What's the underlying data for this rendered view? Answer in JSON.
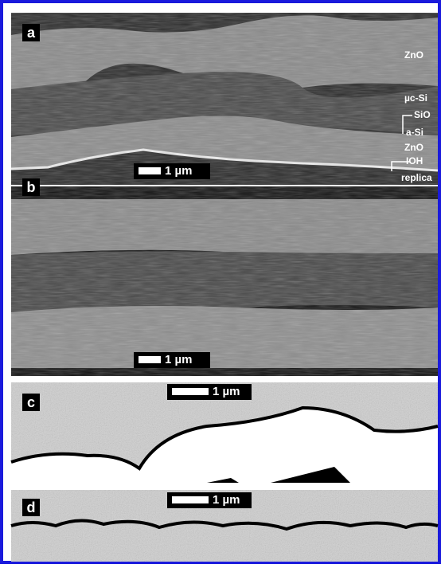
{
  "panels": [
    {
      "label": "a",
      "scale_bar": "1 µm",
      "layers": [
        "ZnO",
        "µc-Si",
        "SiO",
        "a-Si",
        "ZnO",
        "IOH",
        "replica"
      ]
    },
    {
      "label": "b",
      "scale_bar": "1 µm"
    },
    {
      "label": "c",
      "scale_bar": "1 µm"
    },
    {
      "label": "d",
      "scale_bar": "1 µm"
    }
  ]
}
